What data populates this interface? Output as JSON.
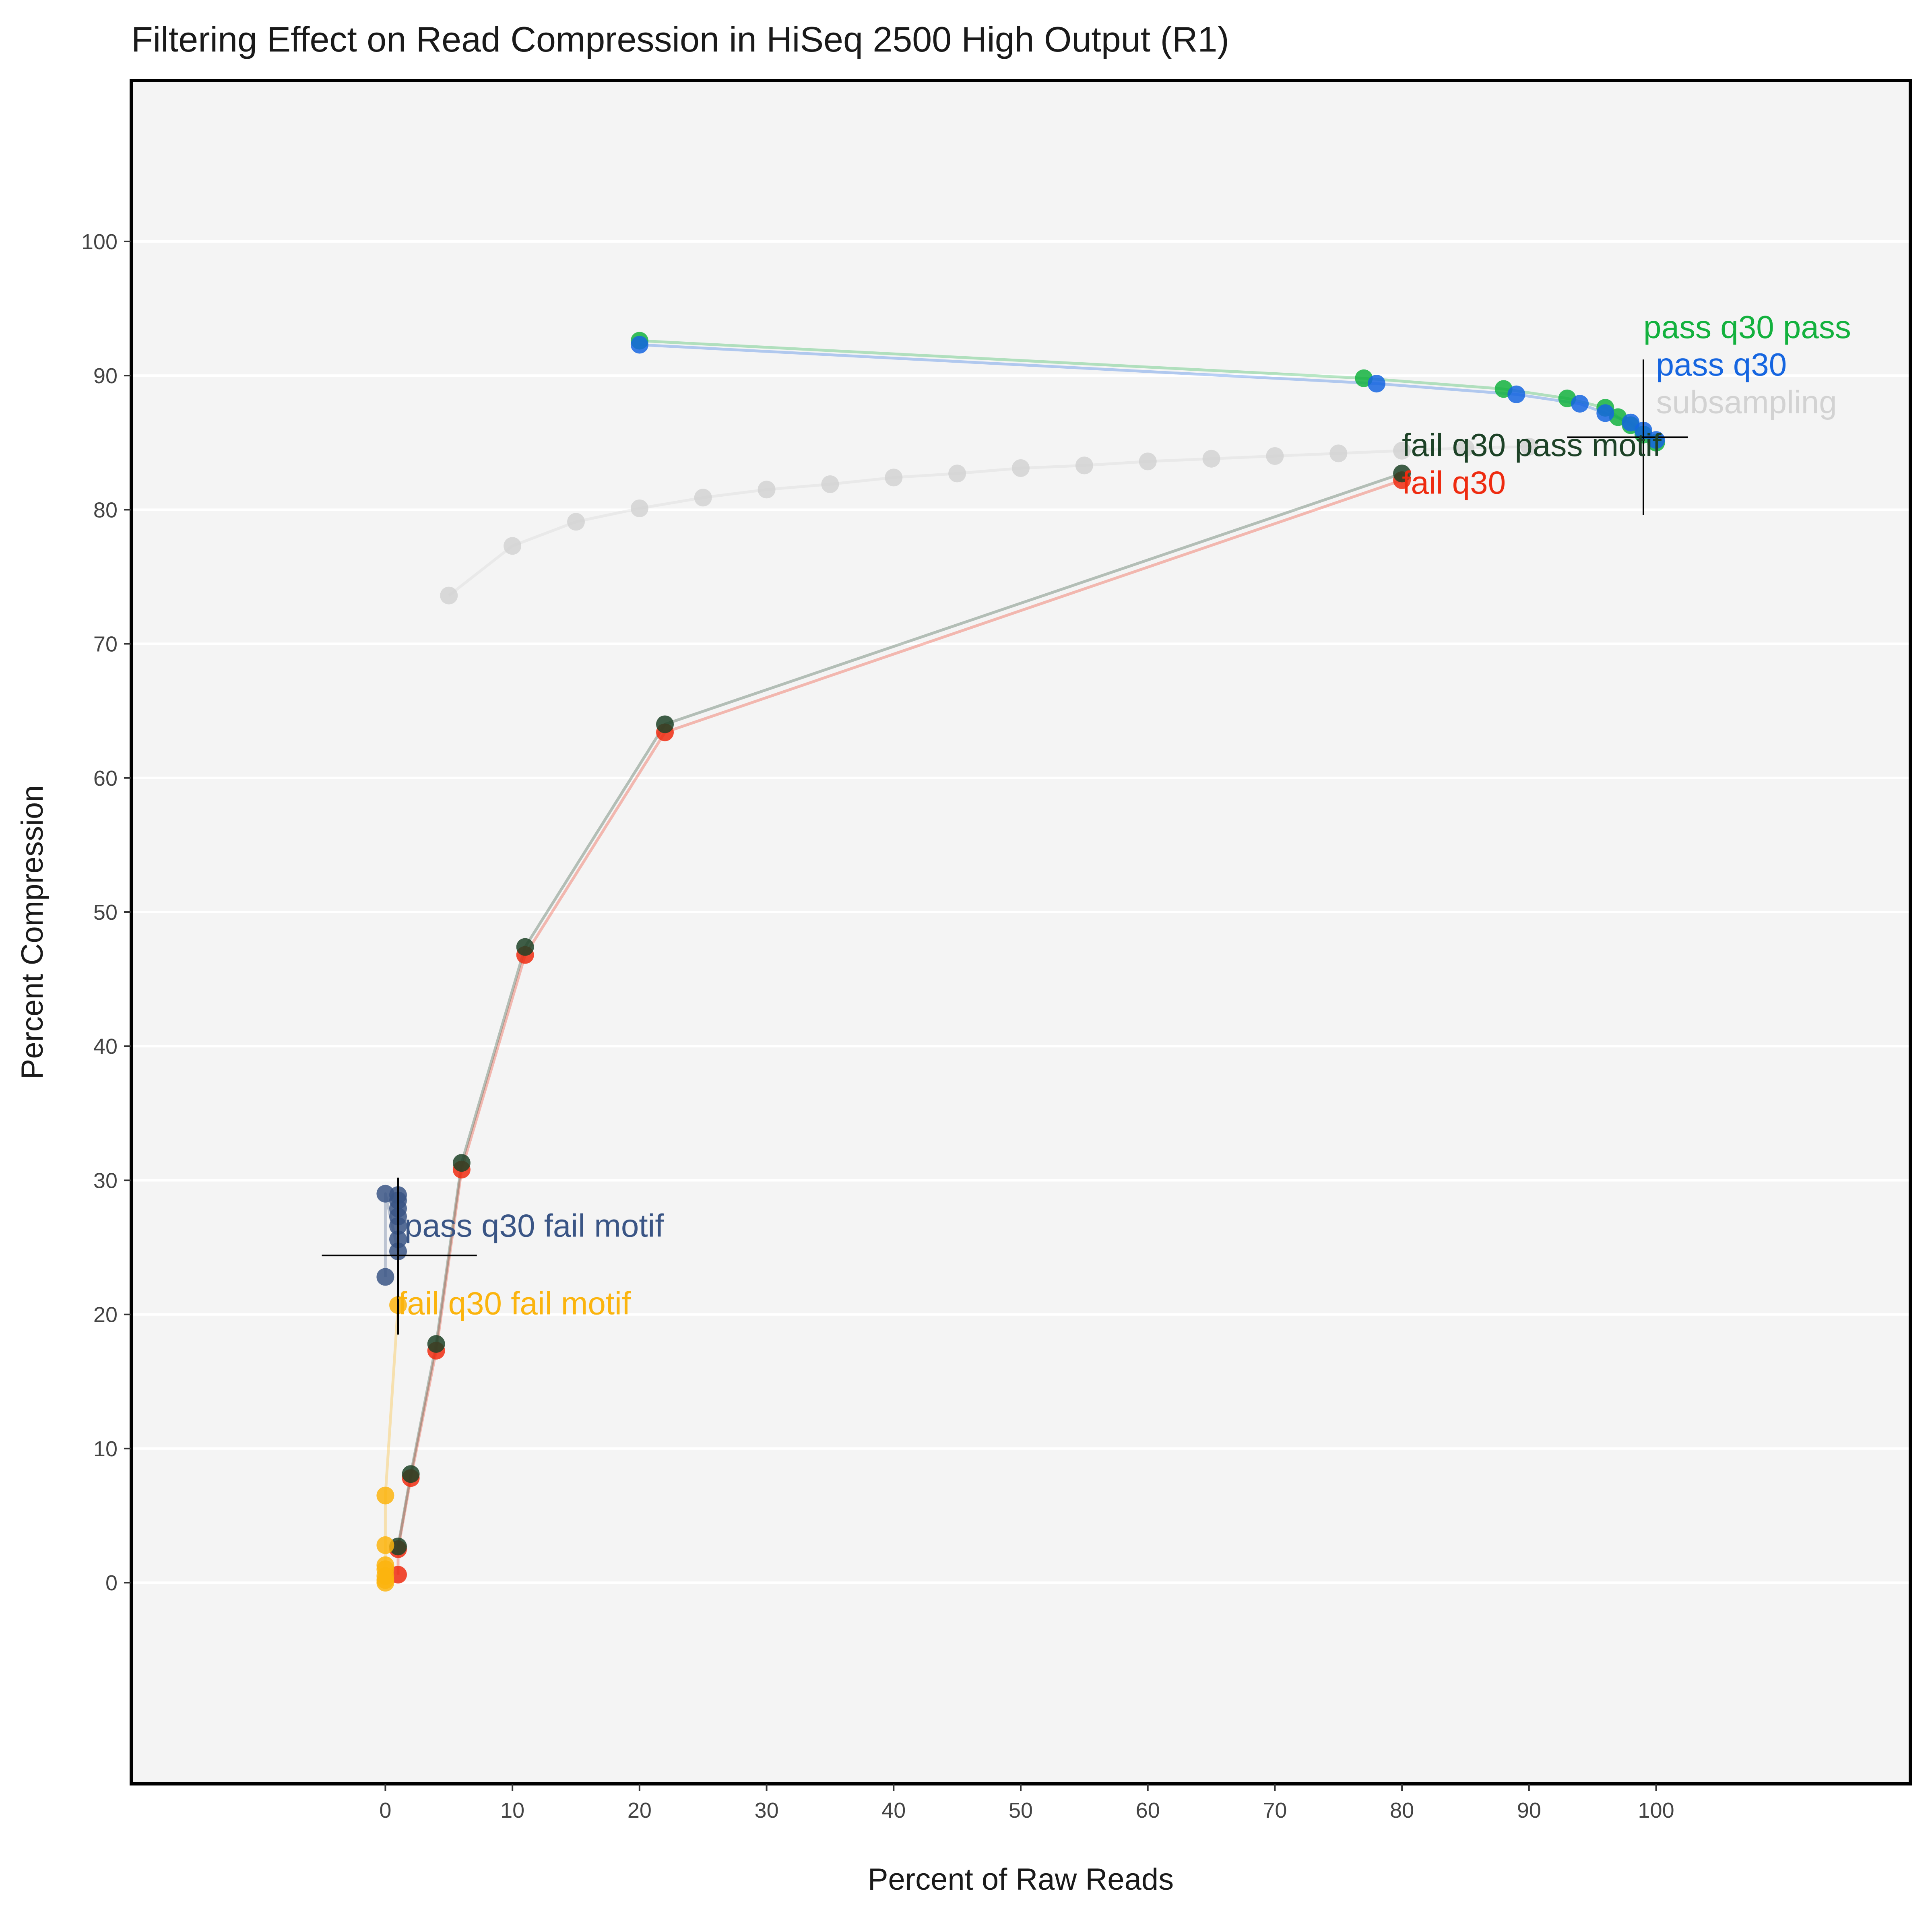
{
  "chart_data": {
    "type": "scatter",
    "title": "Filtering Effect on Read Compression in HiSeq 2500 High Output (R1)",
    "xlabel": "Percent of Raw Reads",
    "ylabel": "Percent Compression",
    "xlim": [
      -20,
      120
    ],
    "ylim": [
      -15,
      112
    ],
    "xticks": [
      0,
      10,
      20,
      30,
      40,
      50,
      60,
      70,
      80,
      90,
      100
    ],
    "yticks": [
      0,
      10,
      20,
      30,
      40,
      50,
      60,
      70,
      80,
      90,
      100
    ],
    "grid": "horizontal",
    "background": "#f4f4f4",
    "series": [
      {
        "name": "subsampling",
        "color": "#d2d2d2",
        "label_at": [
          100,
          87.2
        ],
        "x": [
          5,
          10,
          15,
          20,
          25,
          30,
          35,
          40,
          45,
          50,
          55,
          60,
          65,
          70,
          75,
          80,
          85,
          90
        ],
        "y": [
          73.6,
          77.3,
          79.1,
          80.1,
          80.9,
          81.5,
          81.9,
          82.4,
          82.7,
          83.1,
          83.3,
          83.6,
          83.8,
          84.0,
          84.2,
          84.4,
          84.6,
          84.7
        ]
      },
      {
        "name": "pass q30 pass",
        "color": "#13b13e",
        "label_at": [
          99,
          92.8
        ],
        "x": [
          20,
          77,
          88,
          93,
          96,
          97,
          98,
          99,
          100
        ],
        "y": [
          92.6,
          89.8,
          89.0,
          88.3,
          87.6,
          86.9,
          86.3,
          85.6,
          85.0
        ]
      },
      {
        "name": "pass q30",
        "color": "#1565e0",
        "label_at": [
          100,
          90.0
        ],
        "x": [
          20,
          78,
          89,
          94,
          96,
          98,
          99,
          100
        ],
        "y": [
          92.3,
          89.4,
          88.6,
          87.9,
          87.2,
          86.5,
          85.9,
          85.2
        ]
      },
      {
        "name": "fail q30",
        "color": "#ee2b10",
        "label_at": [
          80,
          81.2
        ],
        "x": [
          1,
          1,
          2,
          4,
          6,
          11,
          22,
          80
        ],
        "y": [
          0.6,
          2.5,
          7.8,
          17.3,
          30.8,
          46.8,
          63.4,
          82.2
        ]
      },
      {
        "name": "fail q30 pass motif",
        "color": "#1d4227",
        "label_at": [
          80,
          84.0
        ],
        "x": [
          1,
          2,
          4,
          6,
          11,
          22,
          80
        ],
        "y": [
          2.7,
          8.1,
          17.8,
          31.3,
          47.4,
          64.0,
          82.7
        ]
      },
      {
        "name": "pass q30 fail motif",
        "color": "#3a5585",
        "label_at": [
          1.5,
          25.8
        ],
        "x": [
          0,
          0,
          1,
          1,
          1,
          1,
          1,
          1,
          1
        ],
        "y": [
          22.8,
          29.0,
          24.7,
          25.6,
          26.6,
          27.3,
          27.9,
          28.5,
          28.9
        ]
      },
      {
        "name": "fail q30 fail motif",
        "color": "#fbb40e",
        "label_at": [
          1,
          20.0
        ],
        "x": [
          0,
          0,
          0,
          0,
          0,
          0,
          0,
          1
        ],
        "y": [
          0.0,
          0.2,
          0.5,
          1.0,
          1.3,
          2.8,
          6.5,
          20.7
        ]
      }
    ],
    "crosshairs": [
      {
        "x": 1,
        "y": 24.4,
        "x_range": [
          -5,
          7.2
        ],
        "y_range": [
          18.5,
          30.2
        ]
      },
      {
        "x": 99,
        "y": 85.4,
        "x_range": [
          93,
          102.5
        ],
        "y_range": [
          79.6,
          91.2
        ]
      }
    ]
  }
}
